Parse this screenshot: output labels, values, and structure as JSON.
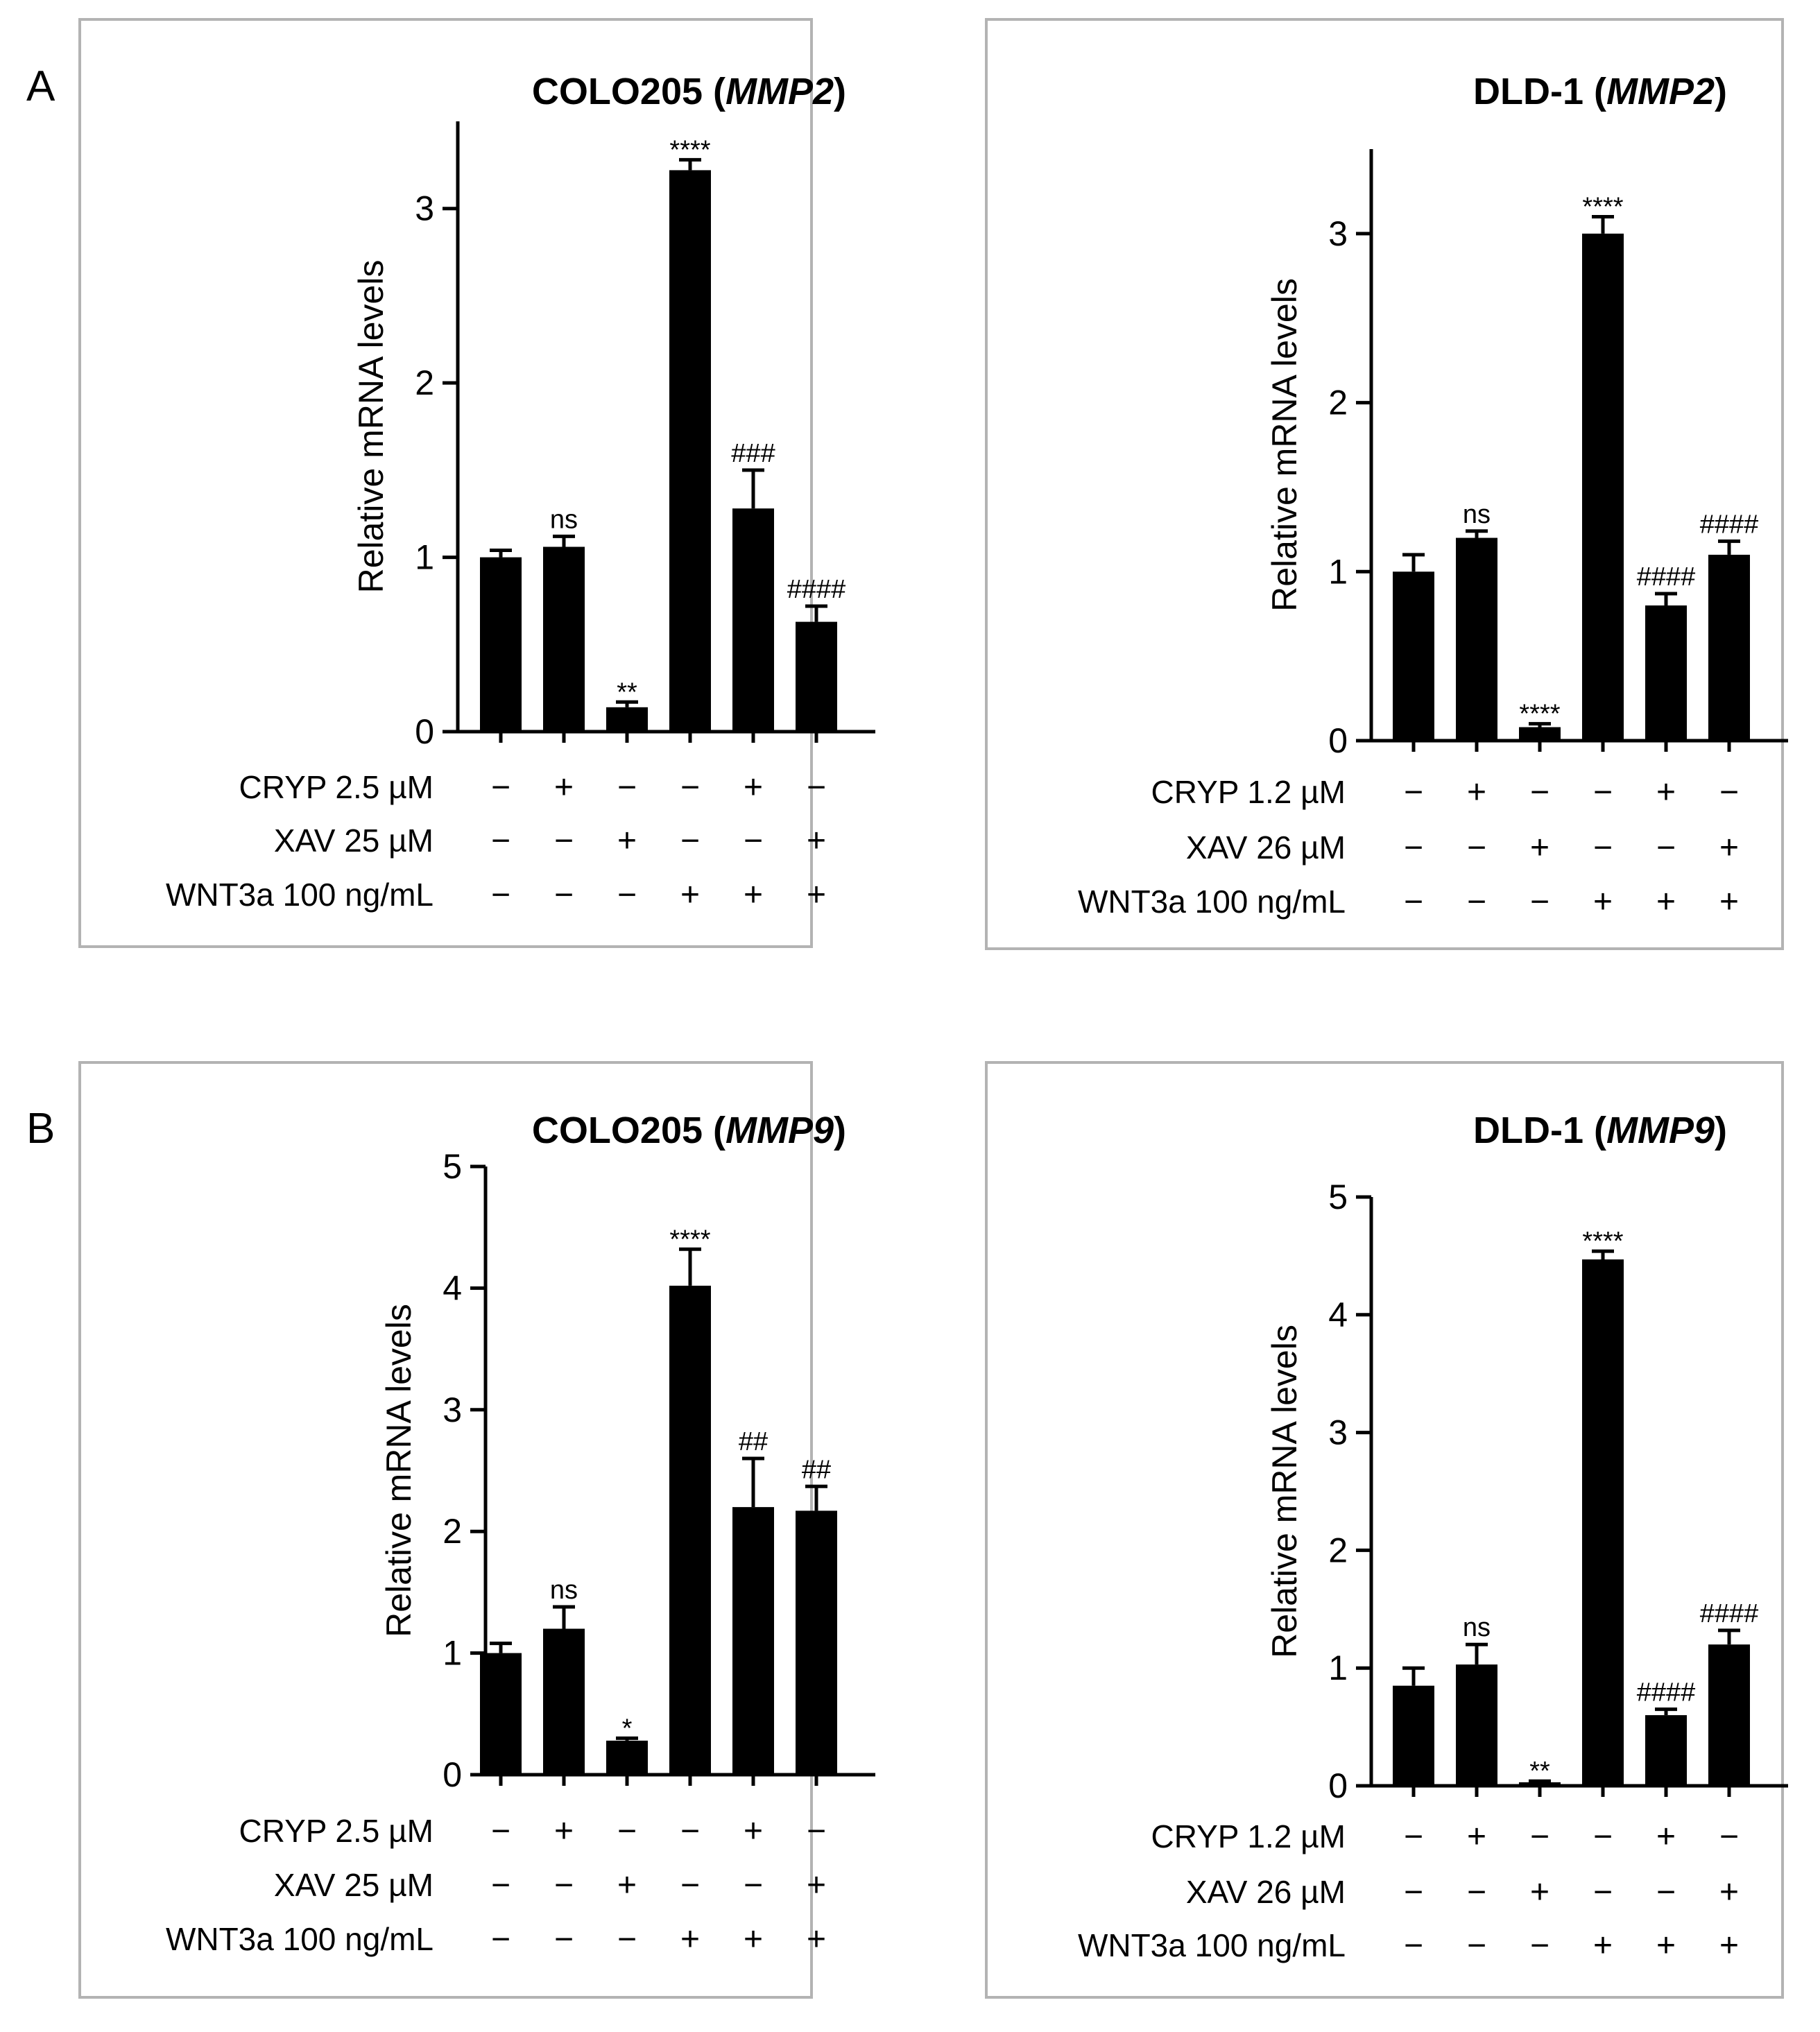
{
  "figure": {
    "panel_letters": [
      "A",
      "B"
    ]
  },
  "chart_data": [
    {
      "type": "bar",
      "title": "COLO205 (",
      "title_gene": "MMP2",
      "title_close": ")",
      "ylabel": "Relative mRNA levels",
      "xlabel": "",
      "ylim": [
        0,
        3.5
      ],
      "yticks": [
        0,
        1,
        2,
        3
      ],
      "grid": false,
      "values": [
        1.0,
        1.06,
        0.14,
        3.22,
        1.28,
        0.63
      ],
      "errors": [
        0.04,
        0.06,
        0.03,
        0.06,
        0.22,
        0.09
      ],
      "annotations": [
        "",
        "ns",
        "**",
        "****",
        "###",
        "####"
      ],
      "treatments": [
        {
          "label": "CRYP 2.5 µM",
          "signs": [
            "−",
            "+",
            "−",
            "−",
            "+",
            "−"
          ]
        },
        {
          "label": "XAV 25 µM",
          "signs": [
            "−",
            "−",
            "+",
            "−",
            "−",
            "+"
          ]
        },
        {
          "label": "WNT3a 100 ng/mL",
          "signs": [
            "−",
            "−",
            "−",
            "+",
            "+",
            "+"
          ]
        }
      ]
    },
    {
      "type": "bar",
      "title": "DLD-1 (",
      "title_gene": "MMP2",
      "title_close": ")",
      "ylabel": "Relative mRNA levels",
      "xlabel": "",
      "ylim": [
        0,
        3.5
      ],
      "yticks": [
        0,
        1,
        2,
        3
      ],
      "grid": false,
      "values": [
        1.0,
        1.2,
        0.08,
        3.0,
        0.8,
        1.1
      ],
      "errors": [
        0.1,
        0.04,
        0.02,
        0.1,
        0.07,
        0.08
      ],
      "annotations": [
        "",
        "ns",
        "****",
        "****",
        "####",
        "####"
      ],
      "treatments": [
        {
          "label": "CRYP 1.2 µM",
          "signs": [
            "−",
            "+",
            "−",
            "−",
            "+",
            "−"
          ]
        },
        {
          "label": "XAV 26 µM",
          "signs": [
            "−",
            "−",
            "+",
            "−",
            "−",
            "+"
          ]
        },
        {
          "label": "WNT3a 100 ng/mL",
          "signs": [
            "−",
            "−",
            "−",
            "+",
            "+",
            "+"
          ]
        }
      ]
    },
    {
      "type": "bar",
      "title": "COLO205 (",
      "title_gene": "MMP9",
      "title_close": ")",
      "ylabel": "Relative mRNA levels",
      "xlabel": "",
      "ylim": [
        0,
        5
      ],
      "yticks": [
        0,
        1,
        2,
        3,
        4,
        5
      ],
      "grid": false,
      "values": [
        1.0,
        1.2,
        0.28,
        4.02,
        2.2,
        2.17
      ],
      "errors": [
        0.08,
        0.18,
        0.02,
        0.3,
        0.4,
        0.2
      ],
      "annotations": [
        "",
        "ns",
        "*",
        "****",
        "##",
        "##"
      ],
      "treatments": [
        {
          "label": "CRYP 2.5 µM",
          "signs": [
            "−",
            "+",
            "−",
            "−",
            "+",
            "−"
          ]
        },
        {
          "label": "XAV 25 µM",
          "signs": [
            "−",
            "−",
            "+",
            "−",
            "−",
            "+"
          ]
        },
        {
          "label": "WNT3a 100 ng/mL",
          "signs": [
            "−",
            "−",
            "−",
            "+",
            "+",
            "+"
          ]
        }
      ]
    },
    {
      "type": "bar",
      "title": "DLD-1 (",
      "title_gene": "MMP9",
      "title_close": ")",
      "ylabel": "Relative mRNA levels",
      "xlabel": "",
      "ylim": [
        0,
        5
      ],
      "yticks": [
        0,
        1,
        2,
        3,
        4,
        5
      ],
      "grid": false,
      "values": [
        0.85,
        1.03,
        0.03,
        4.47,
        0.6,
        1.2
      ],
      "errors": [
        0.15,
        0.17,
        0.01,
        0.07,
        0.05,
        0.12
      ],
      "annotations": [
        "",
        "ns",
        "**",
        "****",
        "####",
        "####"
      ],
      "treatments": [
        {
          "label": "CRYP 1.2 µM",
          "signs": [
            "−",
            "+",
            "−",
            "−",
            "+",
            "−"
          ]
        },
        {
          "label": "XAV 26 µM",
          "signs": [
            "−",
            "−",
            "+",
            "−",
            "−",
            "+"
          ]
        },
        {
          "label": "WNT3a 100 ng/mL",
          "signs": [
            "−",
            "−",
            "−",
            "+",
            "+",
            "+"
          ]
        }
      ]
    }
  ]
}
